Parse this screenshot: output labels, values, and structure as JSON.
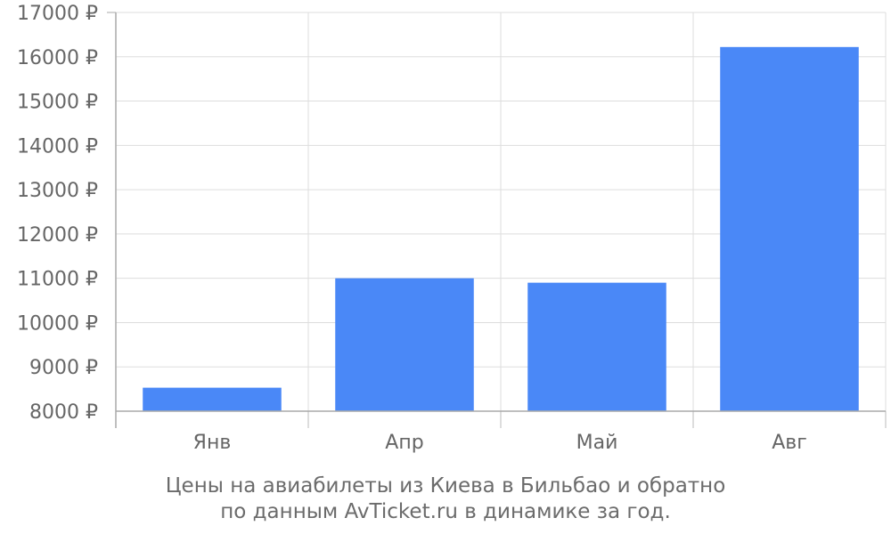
{
  "chart_data": {
    "type": "bar",
    "categories": [
      "Янв",
      "Апр",
      "Май",
      "Авг"
    ],
    "series": [
      {
        "values": [
          8530,
          11000,
          10900,
          16220
        ]
      }
    ],
    "y_ticks": [
      "8000 ₽",
      "9000 ₽",
      "10000 ₽",
      "11000 ₽",
      "12000 ₽",
      "13000 ₽",
      "14000 ₽",
      "15000 ₽",
      "16000 ₽",
      "17000 ₽"
    ],
    "ylim": [
      8000,
      17000
    ],
    "grid": true,
    "legend": "none",
    "bar_color": "#4a88f7",
    "title": ""
  },
  "caption": {
    "line1": "Цены на авиабилеты из Киева в Бильбао и обратно",
    "line2": "по данным AvTicket.ru в динамике за год."
  }
}
